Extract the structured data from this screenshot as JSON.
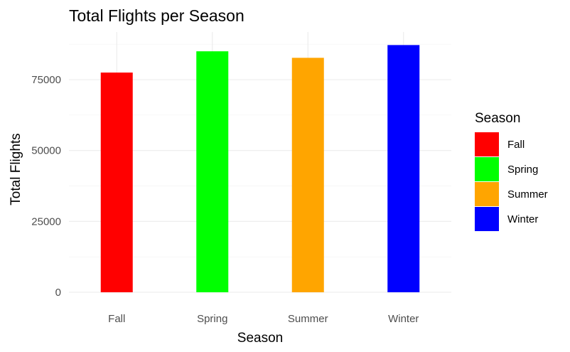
{
  "chart_data": {
    "type": "bar",
    "title": "Total Flights per Season",
    "xlabel": "Season",
    "ylabel": "Total Flights",
    "categories": [
      "Fall",
      "Spring",
      "Summer",
      "Winter"
    ],
    "values": [
      77500,
      85000,
      82700,
      87200
    ],
    "colors": [
      "#FF0000",
      "#00FF00",
      "#FFA500",
      "#0000FF"
    ],
    "ylim": [
      0,
      90000
    ],
    "yticks": [
      0,
      25000,
      50000,
      75000
    ],
    "ytick_labels": [
      "0",
      "25000",
      "50000",
      "75000"
    ],
    "grid": true,
    "legend": {
      "title": "Season",
      "position": "right",
      "entries": [
        "Fall",
        "Spring",
        "Summer",
        "Winter"
      ]
    }
  }
}
